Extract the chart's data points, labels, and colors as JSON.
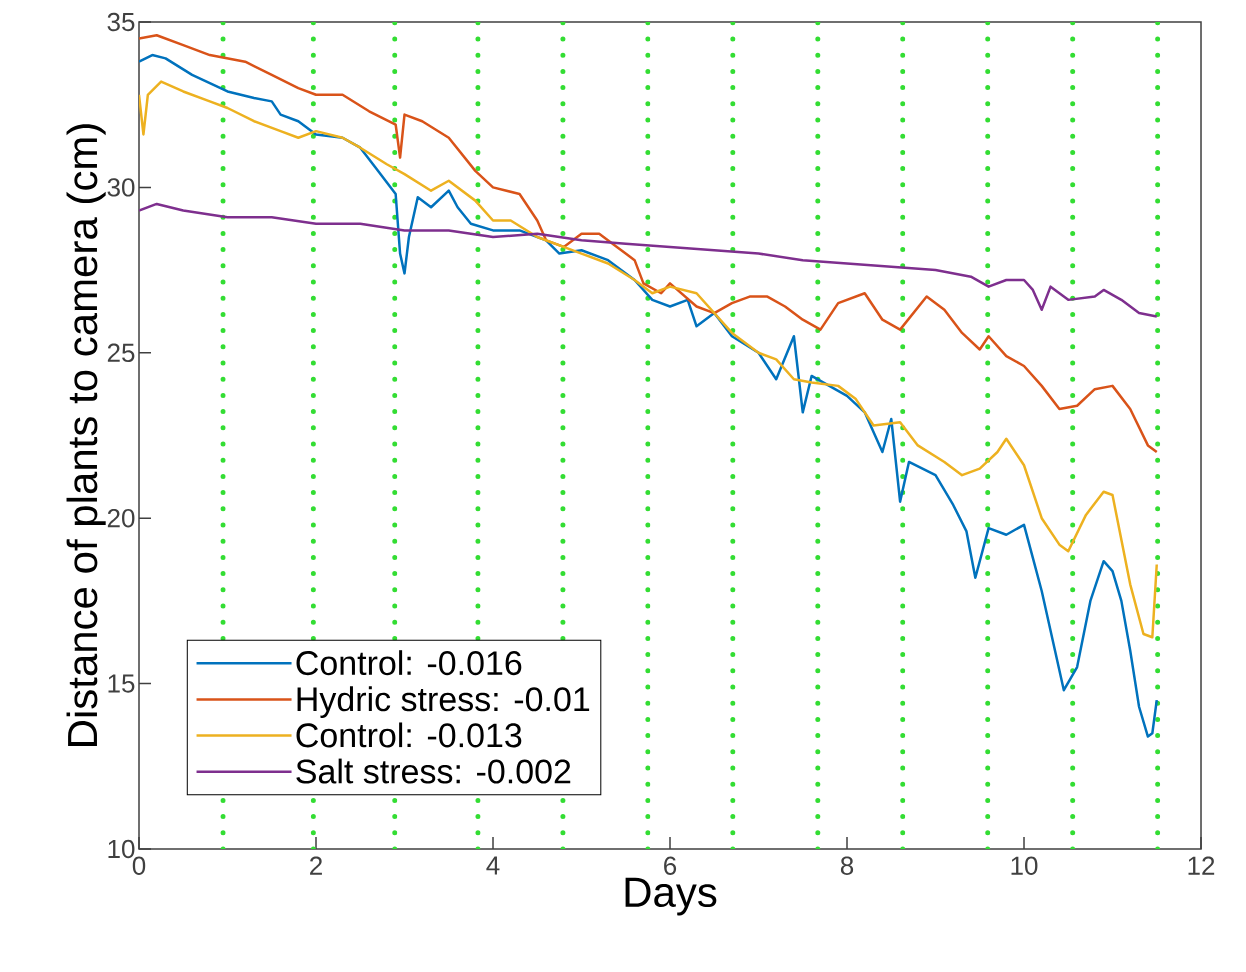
{
  "chart_data": {
    "type": "line",
    "xlabel": "Days",
    "ylabel": "Distance of plants to camera (cm)",
    "xlim": [
      0,
      12
    ],
    "ylim": [
      10,
      35
    ],
    "xticks": [
      0,
      2,
      4,
      6,
      8,
      10,
      12
    ],
    "yticks": [
      10,
      15,
      20,
      25,
      30,
      35
    ],
    "grid": false,
    "legend": "bottom left",
    "ref_lines": [
      {
        "axis": "x",
        "value": 0.95,
        "color": "#33dd33",
        "line_style": "dotted"
      },
      {
        "axis": "x",
        "value": 1.97,
        "color": "#33dd33",
        "line_style": "dotted"
      },
      {
        "axis": "x",
        "value": 2.89,
        "color": "#33dd33",
        "line_style": "dotted"
      },
      {
        "axis": "x",
        "value": 3.83,
        "color": "#33dd33",
        "line_style": "dotted"
      },
      {
        "axis": "x",
        "value": 4.79,
        "color": "#33dd33",
        "line_style": "dotted"
      },
      {
        "axis": "x",
        "value": 5.75,
        "color": "#33dd33",
        "line_style": "dotted"
      },
      {
        "axis": "x",
        "value": 6.71,
        "color": "#33dd33",
        "line_style": "dotted"
      },
      {
        "axis": "x",
        "value": 7.67,
        "color": "#33dd33",
        "line_style": "dotted"
      },
      {
        "axis": "x",
        "value": 8.63,
        "color": "#33dd33",
        "line_style": "dotted"
      },
      {
        "axis": "x",
        "value": 9.59,
        "color": "#33dd33",
        "line_style": "dotted"
      },
      {
        "axis": "x",
        "value": 10.55,
        "color": "#33dd33",
        "line_style": "dotted"
      },
      {
        "axis": "x",
        "value": 11.51,
        "color": "#33dd33",
        "line_style": "dotted"
      }
    ],
    "series": [
      {
        "name": "Control: -0.016",
        "color": "#0072bd",
        "x": [
          0,
          0.15,
          0.3,
          0.6,
          1.0,
          1.3,
          1.5,
          1.6,
          1.8,
          2.0,
          2.3,
          2.5,
          2.7,
          2.9,
          2.95,
          3.0,
          3.05,
          3.15,
          3.3,
          3.5,
          3.6,
          3.75,
          4.0,
          4.3,
          4.6,
          4.75,
          5.0,
          5.3,
          5.6,
          5.8,
          6.0,
          6.2,
          6.3,
          6.5,
          6.7,
          7.0,
          7.2,
          7.4,
          7.5,
          7.6,
          7.8,
          8.0,
          8.2,
          8.4,
          8.5,
          8.6,
          8.7,
          9.0,
          9.2,
          9.35,
          9.45,
          9.6,
          9.8,
          10.0,
          10.1,
          10.2,
          10.35,
          10.45,
          10.6,
          10.75,
          10.9,
          11.0,
          11.1,
          11.2,
          11.3,
          11.4,
          11.45,
          11.5
        ],
        "values": [
          33.8,
          34.0,
          33.9,
          33.4,
          32.9,
          32.7,
          32.6,
          32.2,
          32.0,
          31.6,
          31.5,
          31.2,
          30.5,
          29.8,
          28.0,
          27.4,
          28.5,
          29.7,
          29.4,
          29.9,
          29.4,
          28.9,
          28.7,
          28.7,
          28.4,
          28.0,
          28.1,
          27.8,
          27.2,
          26.6,
          26.4,
          26.6,
          25.8,
          26.2,
          25.5,
          25.0,
          24.2,
          25.5,
          23.2,
          24.3,
          24.0,
          23.7,
          23.2,
          22.0,
          23.0,
          20.5,
          21.7,
          21.3,
          20.4,
          19.6,
          18.2,
          19.7,
          19.5,
          19.8,
          18.8,
          17.8,
          16.0,
          14.8,
          15.5,
          17.5,
          18.7,
          18.4,
          17.5,
          16.0,
          14.3,
          13.4,
          13.5,
          14.5
        ]
      },
      {
        "name": "Hydric stress: -0.01",
        "color": "#d95319",
        "x": [
          0,
          0.2,
          0.5,
          0.8,
          1.2,
          1.5,
          1.8,
          2.0,
          2.3,
          2.6,
          2.9,
          2.95,
          3.0,
          3.2,
          3.5,
          3.8,
          4.0,
          4.3,
          4.5,
          4.6,
          4.8,
          5.0,
          5.2,
          5.4,
          5.6,
          5.7,
          5.9,
          6.0,
          6.3,
          6.5,
          6.7,
          6.9,
          7.1,
          7.3,
          7.5,
          7.7,
          7.9,
          8.2,
          8.4,
          8.6,
          8.9,
          9.1,
          9.3,
          9.5,
          9.6,
          9.8,
          10.0,
          10.2,
          10.4,
          10.6,
          10.8,
          11.0,
          11.2,
          11.4,
          11.5
        ],
        "values": [
          34.5,
          34.6,
          34.3,
          34.0,
          33.8,
          33.4,
          33.0,
          32.8,
          32.8,
          32.3,
          31.9,
          30.9,
          32.2,
          32.0,
          31.5,
          30.5,
          30.0,
          29.8,
          29.0,
          28.4,
          28.2,
          28.6,
          28.6,
          28.2,
          27.8,
          27.1,
          26.8,
          27.1,
          26.4,
          26.2,
          26.5,
          26.7,
          26.7,
          26.4,
          26.0,
          25.7,
          26.5,
          26.8,
          26.0,
          25.7,
          26.7,
          26.3,
          25.6,
          25.1,
          25.5,
          24.9,
          24.6,
          24.0,
          23.3,
          23.4,
          23.9,
          24.0,
          23.3,
          22.2,
          22.0
        ]
      },
      {
        "name": "Control: -0.013",
        "color": "#edb120",
        "x": [
          0,
          0.05,
          0.1,
          0.25,
          0.5,
          0.8,
          1.0,
          1.3,
          1.6,
          1.8,
          2.0,
          2.3,
          2.5,
          2.8,
          3.0,
          3.3,
          3.5,
          3.8,
          4.0,
          4.2,
          4.5,
          4.7,
          5.0,
          5.3,
          5.6,
          5.8,
          6.0,
          6.3,
          6.5,
          6.7,
          7.0,
          7.2,
          7.4,
          7.6,
          7.9,
          8.1,
          8.3,
          8.6,
          8.8,
          9.1,
          9.3,
          9.5,
          9.7,
          9.8,
          10.0,
          10.2,
          10.4,
          10.5,
          10.7,
          10.9,
          11.0,
          11.2,
          11.35,
          11.45,
          11.5
        ],
        "values": [
          32.8,
          31.6,
          32.8,
          33.2,
          32.9,
          32.6,
          32.4,
          32.0,
          31.7,
          31.5,
          31.7,
          31.5,
          31.2,
          30.7,
          30.4,
          29.9,
          30.2,
          29.6,
          29.0,
          29.0,
          28.5,
          28.3,
          28.0,
          27.7,
          27.2,
          26.8,
          27.0,
          26.8,
          26.2,
          25.6,
          25.0,
          24.8,
          24.2,
          24.1,
          24.0,
          23.6,
          22.8,
          22.9,
          22.2,
          21.7,
          21.3,
          21.5,
          22.0,
          22.4,
          21.6,
          20.0,
          19.2,
          19.0,
          20.1,
          20.8,
          20.7,
          18.0,
          16.5,
          16.4,
          18.6
        ]
      },
      {
        "name": "Salt stress: -0.002",
        "color": "#7e2f8e",
        "x": [
          0,
          0.2,
          0.5,
          1.0,
          1.5,
          2.0,
          2.5,
          3.0,
          3.5,
          4.0,
          4.5,
          5.0,
          5.5,
          6.0,
          6.5,
          7.0,
          7.5,
          8.0,
          8.5,
          9.0,
          9.4,
          9.6,
          9.8,
          10.0,
          10.1,
          10.2,
          10.3,
          10.5,
          10.8,
          10.9,
          11.1,
          11.3,
          11.5
        ],
        "values": [
          29.3,
          29.5,
          29.3,
          29.1,
          29.1,
          28.9,
          28.9,
          28.7,
          28.7,
          28.5,
          28.6,
          28.4,
          28.3,
          28.2,
          28.1,
          28.0,
          27.8,
          27.7,
          27.6,
          27.5,
          27.3,
          27.0,
          27.2,
          27.2,
          26.9,
          26.3,
          27.0,
          26.6,
          26.7,
          26.9,
          26.6,
          26.2,
          26.1
        ]
      }
    ]
  }
}
